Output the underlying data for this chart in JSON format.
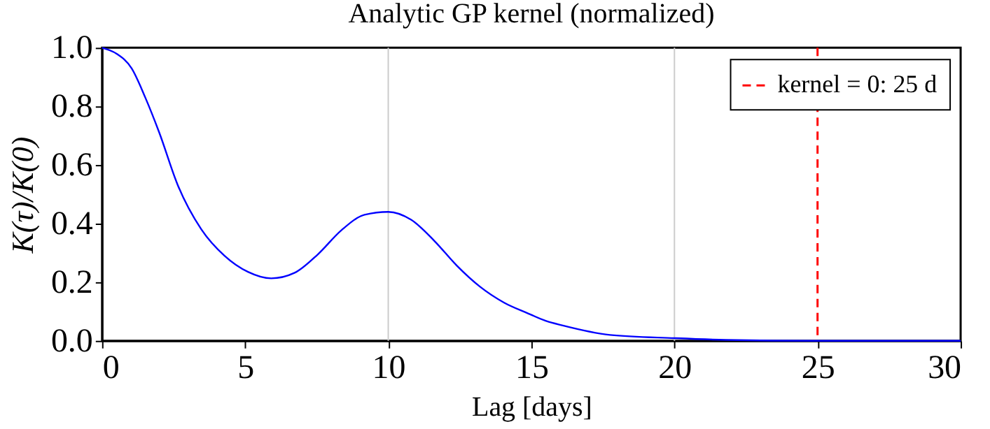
{
  "chart_data": {
    "type": "line",
    "title": "Analytic GP kernel (normalized)",
    "xlabel": "Lag [days]",
    "ylabel": "K(τ)/K(0)",
    "x": [
      0,
      0.5,
      1.03,
      1.51,
      2.0,
      2.65,
      3.47,
      4.28,
      5.1,
      5.91,
      6.73,
      7.54,
      8.36,
      9.17,
      10.0,
      10.8,
      11.6,
      12.4,
      13.2,
      14.05,
      14.87,
      15.5,
      16.1,
      17.75,
      20.0,
      21.8,
      25,
      30
    ],
    "series": [
      {
        "color": "#0000ff",
        "values": [
          1.0,
          0.98,
          0.93,
          0.83,
          0.71,
          0.53,
          0.38,
          0.29,
          0.235,
          0.213,
          0.232,
          0.295,
          0.377,
          0.43,
          0.44,
          0.413,
          0.342,
          0.256,
          0.185,
          0.13,
          0.094,
          0.068,
          0.052,
          0.02,
          0.009,
          0.003,
          0.0,
          0.0
        ]
      }
    ],
    "xlim": [
      0,
      30
    ],
    "xticks": [
      0,
      5,
      10,
      15,
      20,
      25,
      30
    ],
    "ylim": [
      0,
      1
    ],
    "yticks": [
      {
        "value": 0,
        "label": "0.0"
      },
      {
        "value": 0.2,
        "label": "0.2"
      },
      {
        "value": 0.4,
        "label": "0.4"
      },
      {
        "value": 0.6,
        "label": "0.6"
      },
      {
        "value": 0.8,
        "label": "0.8"
      },
      {
        "value": 1,
        "label": "1.0"
      }
    ],
    "ref_lines": [
      {
        "axis": "x",
        "value": 10,
        "color": "#cccccc",
        "line_style": "solid"
      },
      {
        "axis": "x",
        "value": 20,
        "color": "#cccccc",
        "line_style": "solid"
      },
      {
        "axis": "x",
        "value": 25,
        "label": "kernel = 0: 25 d",
        "color": "#ff0000",
        "line_style": "dashed"
      }
    ],
    "legend": "top right",
    "grid": false,
    "marker": "none",
    "line_style": "solid"
  }
}
